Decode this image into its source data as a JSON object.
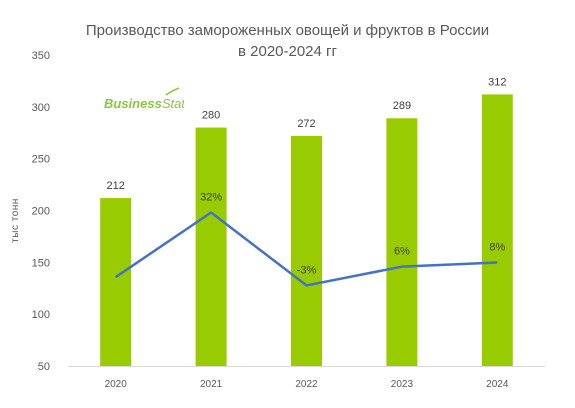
{
  "chart_data": {
    "type": "bar",
    "title_line1": "Производство замороженных овощей и фруктов в России",
    "title_line2": "в 2020-2024 гг",
    "ylabel": "тыс тонн",
    "ylim": [
      50,
      350
    ],
    "yticks": [
      "350",
      "300",
      "250",
      "200",
      "150",
      "100",
      "50"
    ],
    "categories": [
      "2020",
      "2021",
      "2022",
      "2023",
      "2024"
    ],
    "series": [
      {
        "values": [
          212,
          280,
          272,
          289,
          312
        ],
        "value_labels": [
          "212",
          "280",
          "272",
          "289",
          "312"
        ],
        "color": "#99cc00"
      },
      {
        "type": "line",
        "values": [
          null,
          32,
          -3,
          6,
          8
        ],
        "value_labels": [
          "",
          "32%",
          "-3%",
          "6%",
          "8%"
        ],
        "color": "#4472c4"
      }
    ],
    "grid": false,
    "legend": "none"
  },
  "logo": {
    "text_a": "Business",
    "text_b": "Stat",
    "color": "#8cc63f"
  }
}
